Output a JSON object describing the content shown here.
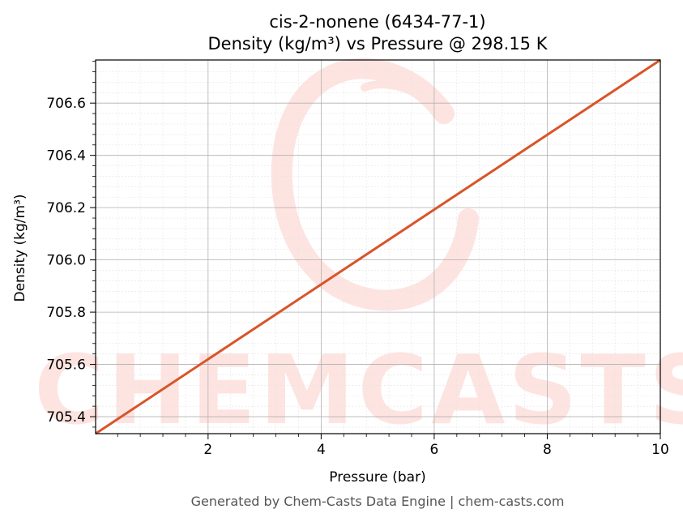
{
  "chart_data": {
    "type": "line",
    "title": "cis-2-nonene (6434-77-1)",
    "subtitle": "Density (kg/m³) vs Pressure @ 298.15 K",
    "xlabel": "Pressure (bar)",
    "ylabel": "Density (kg/m³)",
    "xlim": [
      0.01,
      10
    ],
    "ylim": [
      705.335,
      706.765
    ],
    "xticks": [
      2,
      4,
      6,
      8,
      10
    ],
    "yticks": [
      705.4,
      705.6,
      705.8,
      706.0,
      706.2,
      706.4,
      706.6
    ],
    "ytick_labels": [
      "705.4",
      "705.6",
      "705.8",
      "706.0",
      "706.2",
      "706.4",
      "706.6"
    ],
    "grid": true,
    "series": [
      {
        "color": "#d9542a",
        "x": [
          0.01,
          10
        ],
        "y": [
          705.335,
          706.765
        ]
      }
    ]
  },
  "watermark": {
    "text": "CHEMCASTS",
    "color": "#fde4e1"
  },
  "footer": {
    "text": "Generated by Chem-Casts Data Engine | chem-casts.com"
  }
}
